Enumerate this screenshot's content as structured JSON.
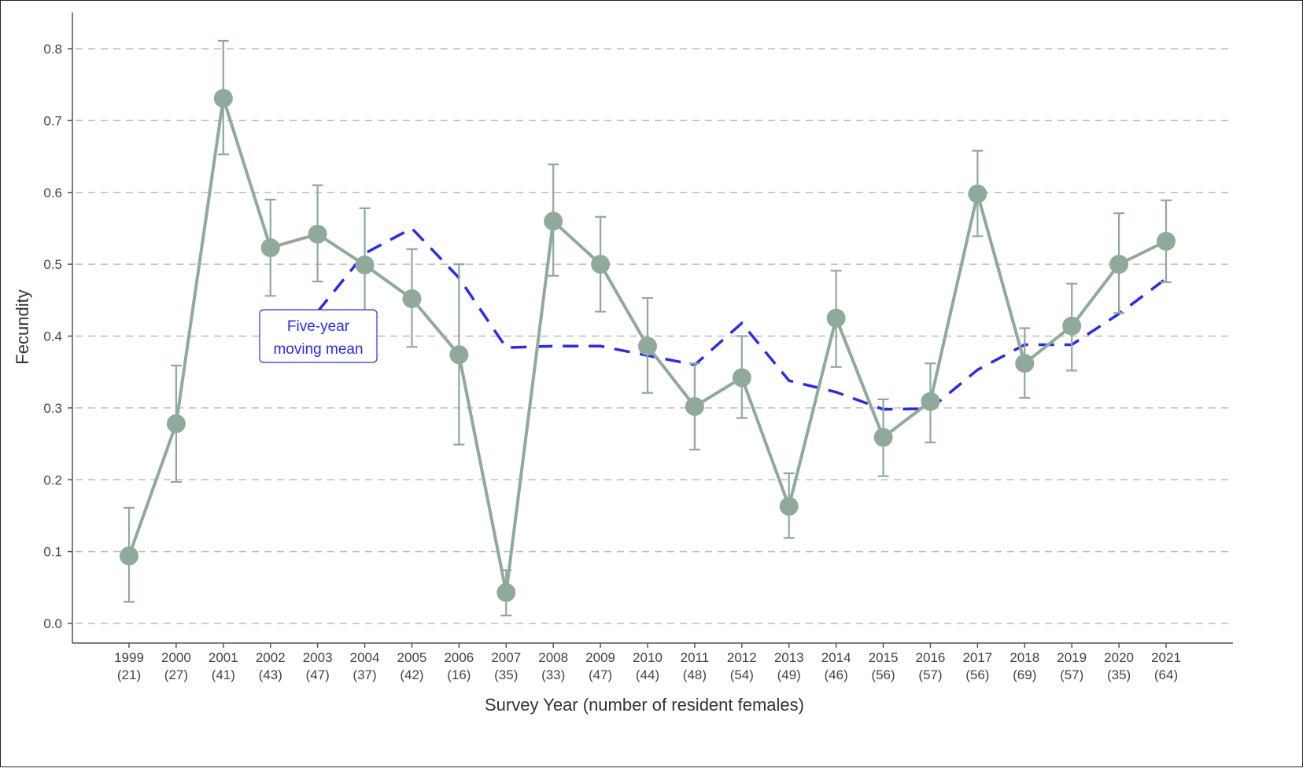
{
  "chart_data": {
    "type": "line",
    "title": "",
    "xlabel": "Survey Year (number of resident females)",
    "ylabel": "Fecundity",
    "ylim": [
      0,
      0.8
    ],
    "yticks": [
      "0.0",
      "0.1",
      "0.2",
      "0.3",
      "0.4",
      "0.5",
      "0.6",
      "0.7",
      "0.8"
    ],
    "grid": "horizontal dashed",
    "categories": [
      "1999",
      "2000",
      "2001",
      "2002",
      "2003",
      "2004",
      "2005",
      "2006",
      "2007",
      "2008",
      "2009",
      "2010",
      "2011",
      "2012",
      "2013",
      "2014",
      "2015",
      "2016",
      "2017",
      "2018",
      "2019",
      "2020",
      "2021"
    ],
    "counts": [
      "(21)",
      "(27)",
      "(41)",
      "(43)",
      "(47)",
      "(37)",
      "(42)",
      "(16)",
      "(35)",
      "(33)",
      "(47)",
      "(44)",
      "(48)",
      "(54)",
      "(49)",
      "(46)",
      "(56)",
      "(57)",
      "(56)",
      "(69)",
      "(57)",
      "(35)",
      "(64)"
    ],
    "series": [
      {
        "values": [
          0.094,
          0.278,
          0.731,
          0.523,
          0.542,
          0.499,
          0.452,
          0.374,
          0.043,
          0.56,
          0.5,
          0.386,
          0.302,
          0.342,
          0.163,
          0.425,
          0.259,
          0.309,
          0.598,
          0.362,
          0.414,
          0.5,
          0.532
        ],
        "upper": [
          0.161,
          0.359,
          0.811,
          0.59,
          0.61,
          0.578,
          0.521,
          0.5,
          0.074,
          0.639,
          0.566,
          0.453,
          0.362,
          0.4,
          0.209,
          0.491,
          0.312,
          0.362,
          0.658,
          0.411,
          0.473,
          0.571,
          0.589
        ],
        "lower": [
          0.03,
          0.197,
          0.653,
          0.456,
          0.476,
          0.42,
          0.385,
          0.249,
          0.011,
          0.484,
          0.434,
          0.321,
          0.242,
          0.286,
          0.119,
          0.357,
          0.205,
          0.252,
          0.539,
          0.314,
          0.352,
          0.432,
          0.475
        ],
        "color": "#8faa9b",
        "style": "solid line with points and error bars"
      },
      {
        "name": "Five-year moving mean",
        "values": [
          null,
          null,
          null,
          null,
          0.434,
          0.515,
          0.55,
          0.481,
          0.384,
          0.386,
          0.386,
          0.373,
          0.36,
          0.418,
          0.338,
          0.322,
          0.298,
          0.299,
          0.353,
          0.388,
          0.388,
          0.431,
          0.48
        ],
        "color": "#2b2bf0",
        "style": "dashed"
      }
    ],
    "annotation": {
      "line1": "Five-year",
      "line2": "moving mean",
      "color": "#2b2bf0"
    }
  }
}
